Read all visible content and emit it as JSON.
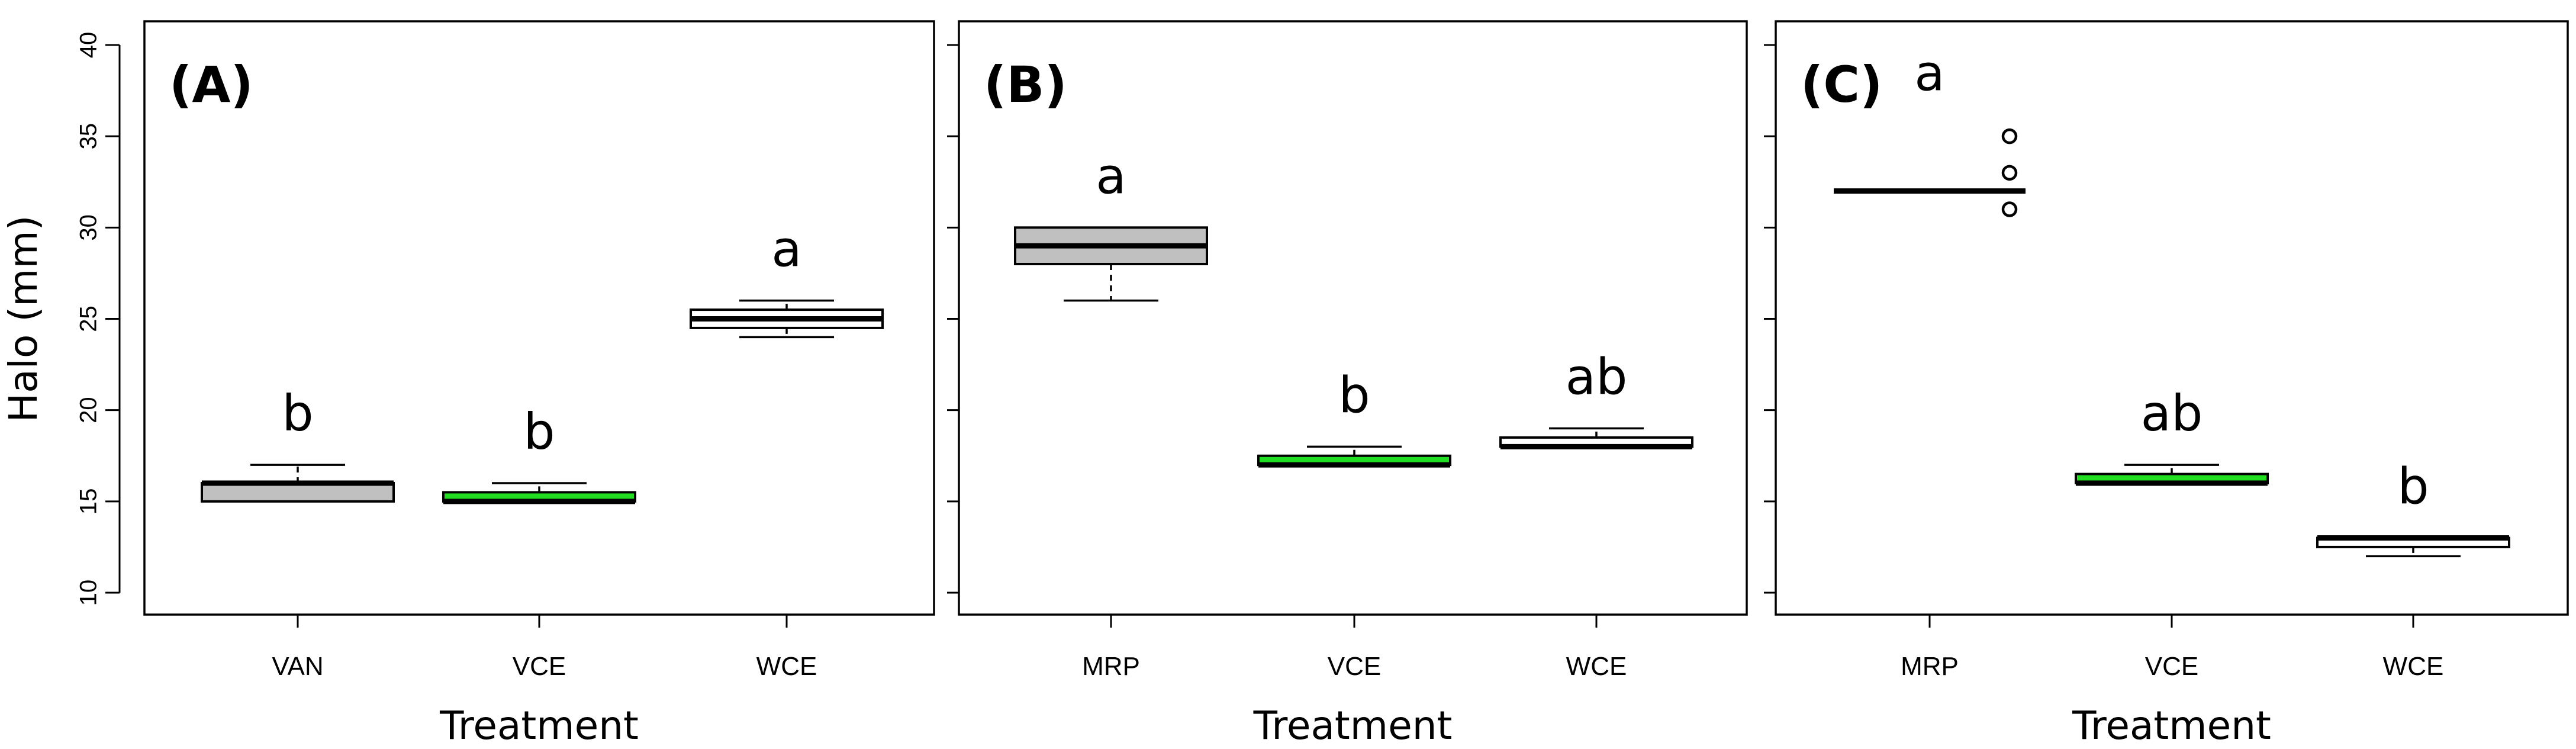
{
  "chart_data": [
    {
      "type": "boxplot",
      "panel_label": "(A)",
      "xlabel": "Treatment",
      "ylabel": "Halo (mm)",
      "ylim": [
        10,
        40
      ],
      "yticks": [
        10,
        15,
        20,
        25,
        30,
        35,
        40
      ],
      "categories": [
        "VAN",
        "VCE",
        "WCE"
      ],
      "boxes": [
        {
          "category": "VAN",
          "min": 15,
          "q1": 15,
          "median": 16,
          "q3": 16,
          "max": 17,
          "outliers": [],
          "color": "#c0c0c0",
          "letter": "b"
        },
        {
          "category": "VCE",
          "min": 15,
          "q1": 15,
          "median": 15,
          "q3": 15.5,
          "max": 16,
          "outliers": [],
          "color": "#22dd22",
          "letter": "b"
        },
        {
          "category": "WCE",
          "min": 24,
          "q1": 24.5,
          "median": 25,
          "q3": 25.5,
          "max": 26,
          "outliers": [],
          "color": "#ffffff",
          "letter": "a"
        }
      ]
    },
    {
      "type": "boxplot",
      "panel_label": "(B)",
      "xlabel": "Treatment",
      "ylabel": "",
      "ylim": [
        10,
        40
      ],
      "yticks": [
        10,
        15,
        20,
        25,
        30,
        35,
        40
      ],
      "categories": [
        "MRP",
        "VCE",
        "WCE"
      ],
      "boxes": [
        {
          "category": "MRP",
          "min": 26,
          "q1": 28,
          "median": 29,
          "q3": 30,
          "max": 30,
          "outliers": [],
          "color": "#c0c0c0",
          "letter": "a"
        },
        {
          "category": "VCE",
          "min": 17,
          "q1": 17,
          "median": 17,
          "q3": 17.5,
          "max": 18,
          "outliers": [],
          "color": "#22dd22",
          "letter": "b"
        },
        {
          "category": "WCE",
          "min": 18,
          "q1": 18,
          "median": 18,
          "q3": 18.5,
          "max": 19,
          "outliers": [],
          "color": "#ffffff",
          "letter": "ab"
        }
      ]
    },
    {
      "type": "boxplot",
      "panel_label": "(C)",
      "xlabel": "Treatment",
      "ylabel": "",
      "ylim": [
        10,
        40
      ],
      "yticks": [
        10,
        15,
        20,
        25,
        30,
        35,
        40
      ],
      "categories": [
        "MRP",
        "VCE",
        "WCE"
      ],
      "boxes": [
        {
          "category": "MRP",
          "min": 32,
          "q1": 32,
          "median": 32,
          "q3": 32,
          "max": 32,
          "outliers": [
            31,
            33,
            35
          ],
          "color": "#c0c0c0",
          "letter": "a"
        },
        {
          "category": "VCE",
          "min": 16,
          "q1": 16,
          "median": 16,
          "q3": 16.5,
          "max": 17,
          "outliers": [],
          "color": "#22dd22",
          "letter": "ab"
        },
        {
          "category": "WCE",
          "min": 12,
          "q1": 12.5,
          "median": 13,
          "q3": 13,
          "max": 13,
          "outliers": [],
          "color": "#ffffff",
          "letter": "b"
        }
      ]
    }
  ]
}
